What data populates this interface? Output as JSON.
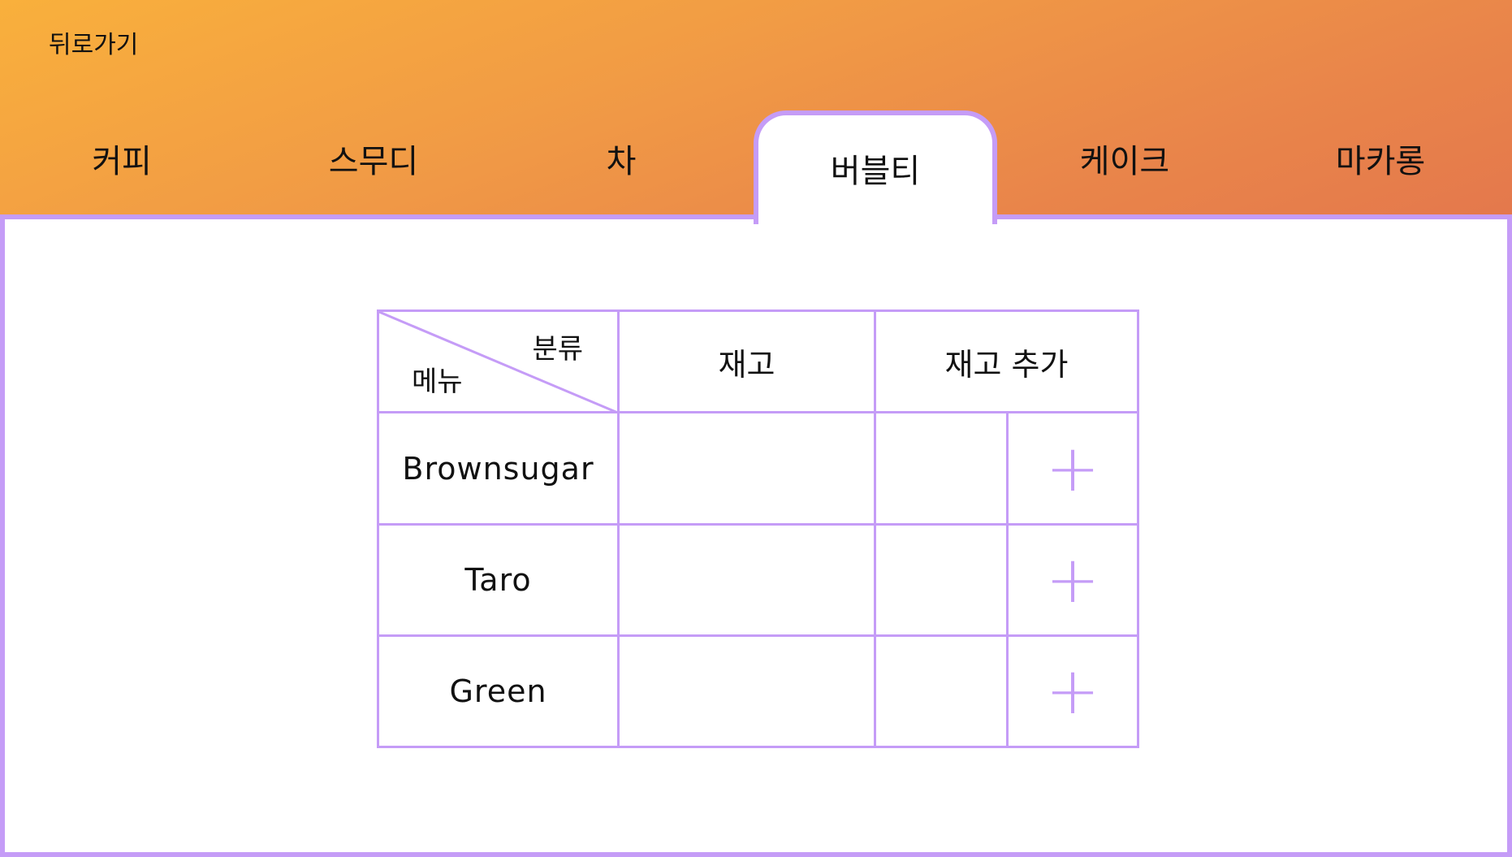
{
  "header": {
    "back_label": "뒤로가기",
    "tabs": [
      {
        "label": "커피",
        "active": false
      },
      {
        "label": "스무디",
        "active": false
      },
      {
        "label": "차",
        "active": false
      },
      {
        "label": "버블티",
        "active": true
      },
      {
        "label": "케이크",
        "active": false
      },
      {
        "label": "마카롱",
        "active": false
      }
    ]
  },
  "colors": {
    "accent": "#c59cf7",
    "header_gradient_start": "#f9b03c",
    "header_gradient_end": "#e4784c"
  },
  "table": {
    "corner_top_label": "분류",
    "corner_bottom_label": "메뉴",
    "col_stock": "재고",
    "col_add_stock": "재고 추가",
    "rows": [
      {
        "name": "Brownsugar",
        "stock": "",
        "add_value": "",
        "add_icon": "plus-icon"
      },
      {
        "name": "Taro",
        "stock": "",
        "add_value": "",
        "add_icon": "plus-icon"
      },
      {
        "name": "Green",
        "stock": "",
        "add_value": "",
        "add_icon": "plus-icon"
      }
    ]
  }
}
